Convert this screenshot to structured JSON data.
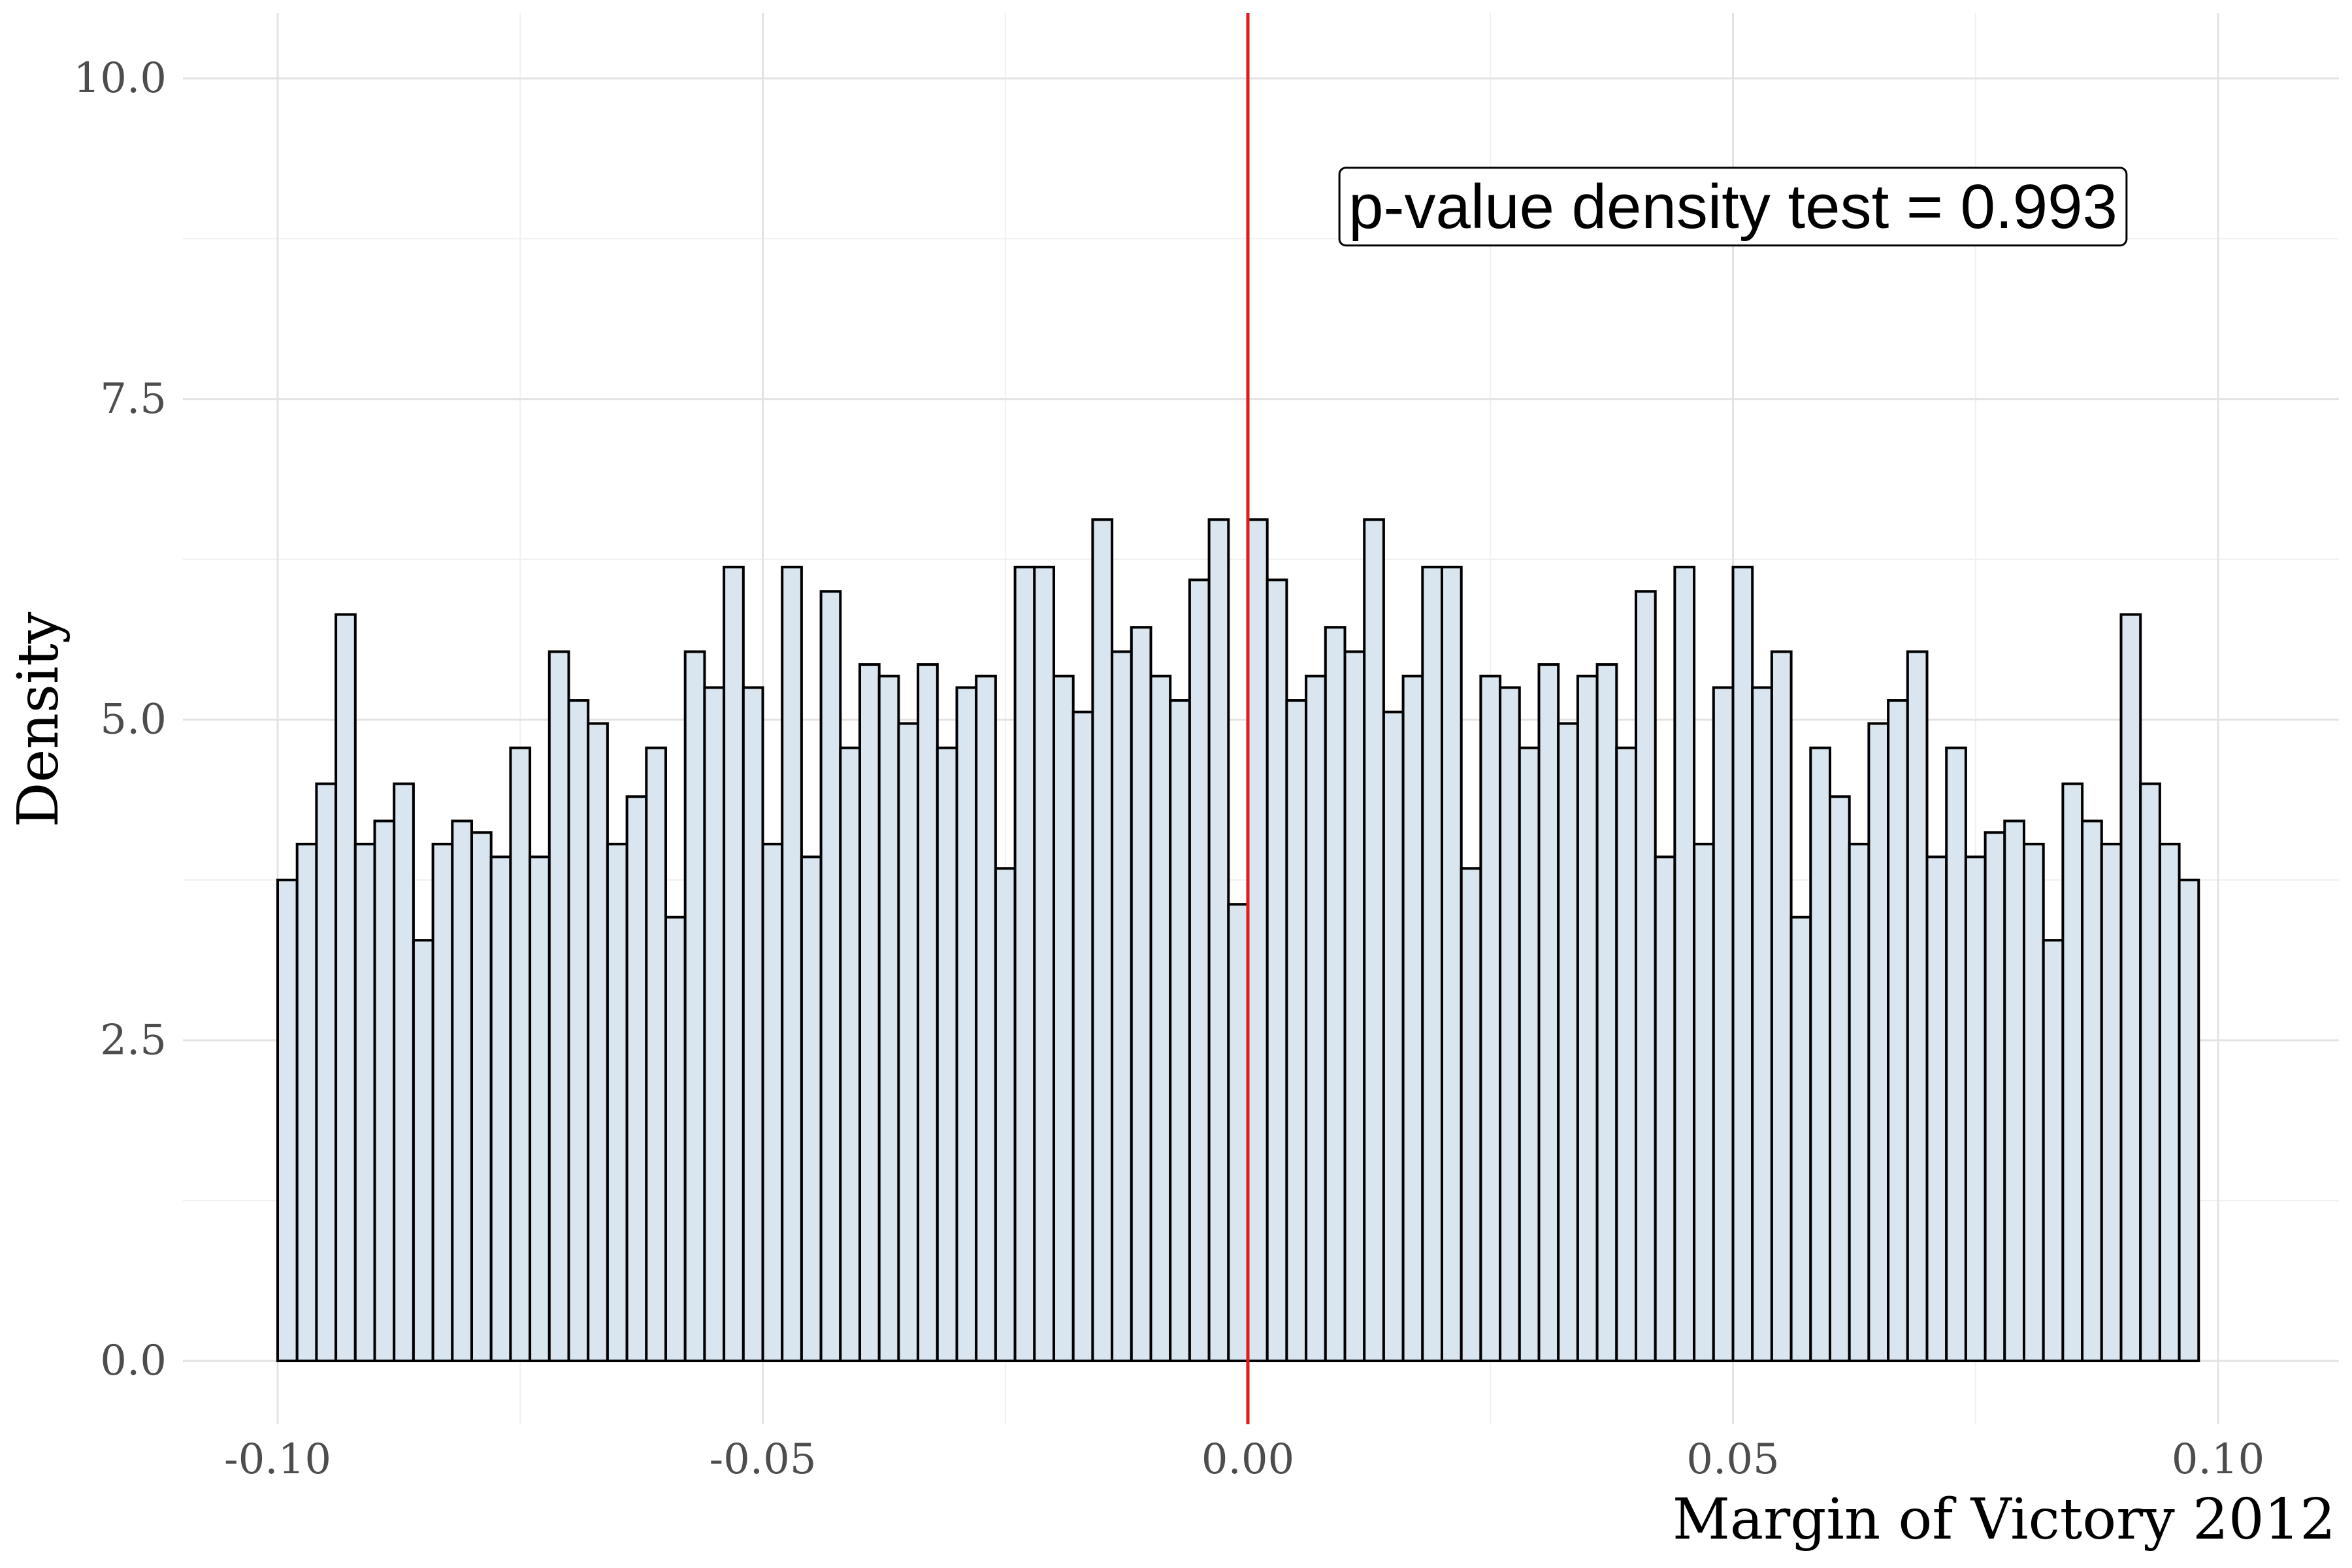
{
  "chart_data": {
    "type": "bar",
    "title": "",
    "xlabel": "Margin of Victory 2012",
    "ylabel": "Density",
    "xlim": [
      -0.1,
      0.1
    ],
    "ylim": [
      0,
      10
    ],
    "x_ticks": [
      -0.1,
      -0.05,
      0.0,
      0.05,
      0.1
    ],
    "x_tick_labels": [
      "-0.10",
      "-0.05",
      "0.00",
      "0.05",
      "0.10"
    ],
    "y_ticks": [
      0,
      2.5,
      5,
      7.5,
      10
    ],
    "y_tick_labels": [
      "0.0",
      "2.5",
      "5.0",
      "7.5",
      "10.0"
    ],
    "grid": true,
    "bin_width": 0.002,
    "bin_start": -0.1,
    "values": [
      3.75,
      4.03,
      4.5,
      5.82,
      4.03,
      4.21,
      4.5,
      3.28,
      4.03,
      4.21,
      4.12,
      3.93,
      4.78,
      3.93,
      5.53,
      5.15,
      4.97,
      4.03,
      4.4,
      4.78,
      3.46,
      5.53,
      5.25,
      6.19,
      5.25,
      4.03,
      6.19,
      3.93,
      6.0,
      4.78,
      5.43,
      5.34,
      4.97,
      5.43,
      4.78,
      5.25,
      5.34,
      3.84,
      6.19,
      6.19,
      5.34,
      5.06,
      6.56,
      5.53,
      5.72,
      5.34,
      5.15,
      6.09,
      6.56,
      3.56,
      6.56,
      6.09,
      5.15,
      5.34,
      5.72,
      5.53,
      6.56,
      5.06,
      5.34,
      6.19,
      6.19,
      3.84,
      5.34,
      5.25,
      4.78,
      5.43,
      4.97,
      5.34,
      5.43,
      4.78,
      6.0,
      3.93,
      6.19,
      4.03,
      5.25,
      6.19,
      5.25,
      5.53,
      3.46,
      4.78,
      4.4,
      4.03,
      4.97,
      5.15,
      5.53,
      3.93,
      4.78,
      3.93,
      4.12,
      4.21,
      4.03,
      3.28,
      4.5,
      4.21,
      4.03,
      5.82,
      4.5,
      4.03,
      3.75
    ],
    "bar_fill": "#dae6ef",
    "bar_stroke": "#000000",
    "cutoff_line": {
      "x": 0.0,
      "color": "#e31a1c"
    },
    "annotation": {
      "text": "p-value density test =  0.993",
      "x": 0.05,
      "y": 9.0
    }
  }
}
